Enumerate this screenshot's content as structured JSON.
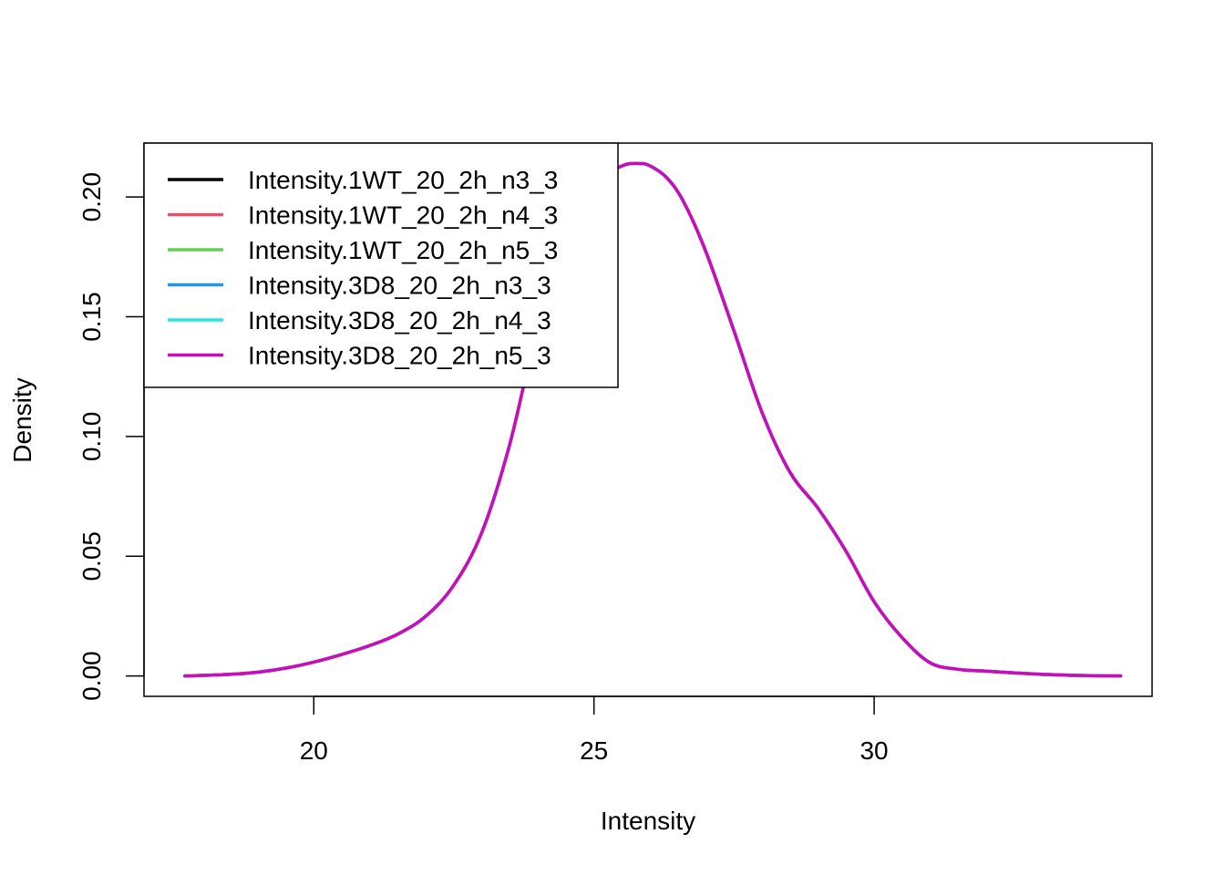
{
  "chart_data": {
    "type": "line",
    "title": "",
    "xlabel": "Intensity",
    "ylabel": "Density",
    "xlim": [
      16.97,
      34.96
    ],
    "ylim": [
      -0.0085,
      0.2225
    ],
    "x_ticks": [
      20,
      25,
      30
    ],
    "x_tick_labels": [
      "20",
      "25",
      "30"
    ],
    "y_ticks": [
      0.0,
      0.05,
      0.1,
      0.15,
      0.2
    ],
    "y_tick_labels": [
      "0.00",
      "0.05",
      "0.10",
      "0.15",
      "0.20"
    ],
    "grid": false,
    "legend_position": "top-left",
    "x": [
      17.7,
      18.5,
      19.0,
      19.5,
      20.0,
      20.5,
      21.0,
      21.5,
      22.0,
      22.5,
      23.0,
      23.5,
      24.0,
      24.5,
      25.0,
      25.5,
      25.8,
      26.0,
      26.3,
      26.6,
      27.0,
      27.5,
      28.0,
      28.5,
      29.0,
      29.5,
      30.0,
      30.5,
      31.0,
      31.5,
      32.0,
      32.5,
      33.0,
      33.5,
      34.0,
      34.4
    ],
    "series": [
      {
        "name": "Intensity.1WT_20_2h_n3_3",
        "color": "#000000",
        "values": [
          0.0,
          0.0007,
          0.0016,
          0.0033,
          0.0058,
          0.009,
          0.0127,
          0.0175,
          0.025,
          0.038,
          0.06,
          0.097,
          0.147,
          0.188,
          0.206,
          0.213,
          0.214,
          0.213,
          0.208,
          0.198,
          0.177,
          0.144,
          0.11,
          0.085,
          0.07,
          0.052,
          0.031,
          0.016,
          0.0055,
          0.0028,
          0.002,
          0.0013,
          0.0007,
          0.0003,
          0.0001,
          0.0
        ]
      },
      {
        "name": "Intensity.1WT_20_2h_n4_3",
        "color": "#DF536B",
        "values": [
          0.0,
          0.0007,
          0.0016,
          0.0033,
          0.0058,
          0.009,
          0.0127,
          0.0175,
          0.025,
          0.038,
          0.06,
          0.097,
          0.147,
          0.188,
          0.206,
          0.213,
          0.214,
          0.213,
          0.208,
          0.198,
          0.177,
          0.144,
          0.11,
          0.085,
          0.07,
          0.052,
          0.031,
          0.016,
          0.0055,
          0.0028,
          0.002,
          0.0013,
          0.0007,
          0.0003,
          0.0001,
          0.0
        ]
      },
      {
        "name": "Intensity.1WT_20_2h_n5_3",
        "color": "#61D04F",
        "values": [
          0.0,
          0.0007,
          0.0016,
          0.0033,
          0.0058,
          0.009,
          0.0127,
          0.0175,
          0.025,
          0.038,
          0.06,
          0.097,
          0.147,
          0.188,
          0.206,
          0.213,
          0.214,
          0.213,
          0.208,
          0.198,
          0.177,
          0.144,
          0.11,
          0.085,
          0.07,
          0.052,
          0.031,
          0.016,
          0.0055,
          0.0028,
          0.002,
          0.0013,
          0.0007,
          0.0003,
          0.0001,
          0.0
        ]
      },
      {
        "name": "Intensity.3D8_20_2h_n3_3",
        "color": "#2297E6",
        "values": [
          0.0,
          0.0007,
          0.0016,
          0.0033,
          0.0058,
          0.009,
          0.0127,
          0.0175,
          0.025,
          0.038,
          0.06,
          0.097,
          0.147,
          0.188,
          0.206,
          0.213,
          0.214,
          0.213,
          0.208,
          0.198,
          0.177,
          0.144,
          0.11,
          0.085,
          0.07,
          0.052,
          0.031,
          0.016,
          0.0055,
          0.0028,
          0.002,
          0.0013,
          0.0007,
          0.0003,
          0.0001,
          0.0
        ]
      },
      {
        "name": "Intensity.3D8_20_2h_n4_3",
        "color": "#28E2E5",
        "values": [
          0.0,
          0.0007,
          0.0016,
          0.0033,
          0.0058,
          0.009,
          0.0127,
          0.0175,
          0.025,
          0.038,
          0.06,
          0.097,
          0.147,
          0.188,
          0.206,
          0.213,
          0.214,
          0.213,
          0.208,
          0.198,
          0.177,
          0.144,
          0.11,
          0.085,
          0.07,
          0.052,
          0.031,
          0.016,
          0.0055,
          0.0028,
          0.002,
          0.0013,
          0.0007,
          0.0003,
          0.0001,
          0.0
        ]
      },
      {
        "name": "Intensity.3D8_20_2h_n5_3",
        "color": "#CD0BBC",
        "values": [
          0.0,
          0.0007,
          0.0016,
          0.0033,
          0.0058,
          0.009,
          0.0127,
          0.0175,
          0.025,
          0.038,
          0.06,
          0.097,
          0.147,
          0.188,
          0.206,
          0.213,
          0.214,
          0.213,
          0.208,
          0.198,
          0.177,
          0.144,
          0.11,
          0.085,
          0.07,
          0.052,
          0.031,
          0.016,
          0.0055,
          0.0028,
          0.002,
          0.0013,
          0.0007,
          0.0003,
          0.0001,
          0.0
        ]
      }
    ]
  }
}
